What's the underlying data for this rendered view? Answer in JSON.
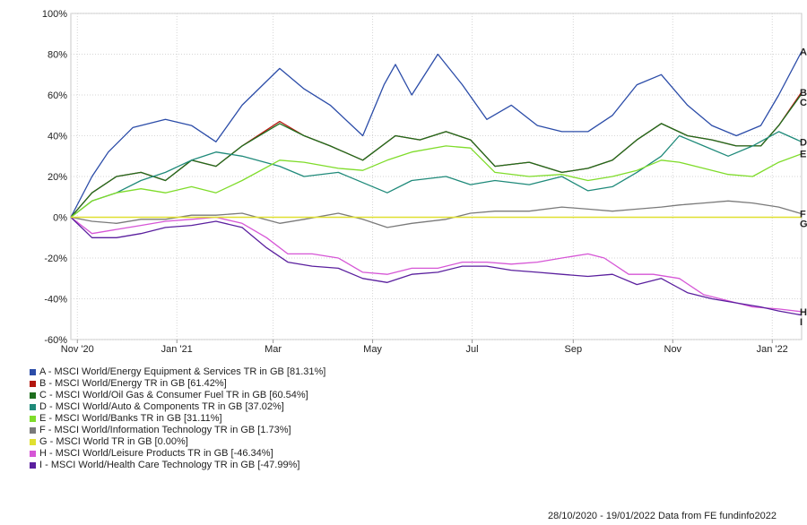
{
  "chart_data": {
    "type": "line",
    "x_ticks": [
      "Nov '20",
      "Jan '21",
      "Mar",
      "May",
      "Jul",
      "Sep",
      "Nov",
      "Jan '22"
    ],
    "y_ticks": [
      "100%",
      "80%",
      "60%",
      "40%",
      "20%",
      "0%",
      "-20%",
      "-40%",
      "-60%"
    ],
    "ylim": [
      -60,
      100
    ],
    "xlim": [
      "2020-10-28",
      "2022-01-19"
    ],
    "grid": true,
    "legend_position": "bottom-left",
    "series": [
      {
        "label": "A",
        "name": "A - MSCI World/Energy Equipment & Services TR in GB [81.31%]",
        "color": "#2b4ca8",
        "points": [
          [
            "2020-10-28",
            0
          ],
          [
            "2020-11-10",
            20
          ],
          [
            "2020-11-20",
            32
          ],
          [
            "2020-12-05",
            44
          ],
          [
            "2020-12-25",
            48
          ],
          [
            "2021-01-10",
            45
          ],
          [
            "2021-01-25",
            37
          ],
          [
            "2021-02-10",
            55
          ],
          [
            "2021-03-05",
            73
          ],
          [
            "2021-03-20",
            63
          ],
          [
            "2021-04-05",
            55
          ],
          [
            "2021-04-25",
            40
          ],
          [
            "2021-05-08",
            65
          ],
          [
            "2021-05-15",
            75
          ],
          [
            "2021-05-25",
            60
          ],
          [
            "2021-06-10",
            80
          ],
          [
            "2021-06-25",
            65
          ],
          [
            "2021-07-10",
            48
          ],
          [
            "2021-07-25",
            55
          ],
          [
            "2021-08-10",
            45
          ],
          [
            "2021-08-25",
            42
          ],
          [
            "2021-09-10",
            42
          ],
          [
            "2021-09-25",
            50
          ],
          [
            "2021-10-10",
            65
          ],
          [
            "2021-10-25",
            70
          ],
          [
            "2021-11-10",
            55
          ],
          [
            "2021-11-25",
            45
          ],
          [
            "2021-12-10",
            40
          ],
          [
            "2021-12-25",
            45
          ],
          [
            "2022-01-05",
            60
          ],
          [
            "2022-01-19",
            81.31
          ]
        ]
      },
      {
        "label": "B",
        "name": "B - MSCI World/Energy TR in GB [61.42%]",
        "color": "#b3170f",
        "points": [
          [
            "2020-10-28",
            0
          ],
          [
            "2020-11-10",
            12
          ],
          [
            "2020-11-25",
            20
          ],
          [
            "2020-12-10",
            22
          ],
          [
            "2020-12-25",
            18
          ],
          [
            "2021-01-10",
            28
          ],
          [
            "2021-01-25",
            25
          ],
          [
            "2021-02-10",
            35
          ],
          [
            "2021-03-05",
            47
          ],
          [
            "2021-03-20",
            40
          ],
          [
            "2021-04-05",
            35
          ],
          [
            "2021-04-25",
            28
          ],
          [
            "2021-05-15",
            40
          ],
          [
            "2021-05-30",
            38
          ],
          [
            "2021-06-15",
            42
          ],
          [
            "2021-06-30",
            38
          ],
          [
            "2021-07-15",
            25
          ],
          [
            "2021-08-05",
            27
          ],
          [
            "2021-08-25",
            22
          ],
          [
            "2021-09-10",
            24
          ],
          [
            "2021-09-25",
            28
          ],
          [
            "2021-10-10",
            38
          ],
          [
            "2021-10-25",
            46
          ],
          [
            "2021-11-10",
            40
          ],
          [
            "2021-11-25",
            38
          ],
          [
            "2021-12-10",
            35
          ],
          [
            "2021-12-25",
            35
          ],
          [
            "2022-01-05",
            45
          ],
          [
            "2022-01-19",
            61.42
          ]
        ]
      },
      {
        "label": "C",
        "name": "C - MSCI World/Oil Gas & Consumer Fuel TR in GB [60.54%]",
        "color": "#1e6e1e",
        "points": [
          [
            "2020-10-28",
            0
          ],
          [
            "2020-11-10",
            12
          ],
          [
            "2020-11-25",
            20
          ],
          [
            "2020-12-10",
            22
          ],
          [
            "2020-12-25",
            18
          ],
          [
            "2021-01-10",
            28
          ],
          [
            "2021-01-25",
            25
          ],
          [
            "2021-02-10",
            35
          ],
          [
            "2021-03-05",
            46
          ],
          [
            "2021-03-20",
            40
          ],
          [
            "2021-04-05",
            35
          ],
          [
            "2021-04-25",
            28
          ],
          [
            "2021-05-15",
            40
          ],
          [
            "2021-05-30",
            38
          ],
          [
            "2021-06-15",
            42
          ],
          [
            "2021-06-30",
            38
          ],
          [
            "2021-07-15",
            25
          ],
          [
            "2021-08-05",
            27
          ],
          [
            "2021-08-25",
            22
          ],
          [
            "2021-09-10",
            24
          ],
          [
            "2021-09-25",
            28
          ],
          [
            "2021-10-10",
            38
          ],
          [
            "2021-10-25",
            46
          ],
          [
            "2021-11-10",
            40
          ],
          [
            "2021-11-25",
            38
          ],
          [
            "2021-12-10",
            35
          ],
          [
            "2021-12-25",
            35
          ],
          [
            "2022-01-05",
            45
          ],
          [
            "2022-01-19",
            60.54
          ]
        ]
      },
      {
        "label": "D",
        "name": "D - MSCI World/Auto & Components TR in GB [37.02%]",
        "color": "#1f8a7a",
        "points": [
          [
            "2020-10-28",
            0
          ],
          [
            "2020-11-10",
            8
          ],
          [
            "2020-11-25",
            12
          ],
          [
            "2020-12-10",
            18
          ],
          [
            "2020-12-25",
            22
          ],
          [
            "2021-01-10",
            28
          ],
          [
            "2021-01-25",
            32
          ],
          [
            "2021-02-10",
            30
          ],
          [
            "2021-03-05",
            25
          ],
          [
            "2021-03-20",
            20
          ],
          [
            "2021-04-10",
            22
          ],
          [
            "2021-04-25",
            17
          ],
          [
            "2021-05-10",
            12
          ],
          [
            "2021-05-25",
            18
          ],
          [
            "2021-06-15",
            20
          ],
          [
            "2021-06-30",
            16
          ],
          [
            "2021-07-15",
            18
          ],
          [
            "2021-08-05",
            16
          ],
          [
            "2021-08-25",
            20
          ],
          [
            "2021-09-10",
            13
          ],
          [
            "2021-09-25",
            15
          ],
          [
            "2021-10-10",
            22
          ],
          [
            "2021-10-25",
            30
          ],
          [
            "2021-11-05",
            40
          ],
          [
            "2021-11-20",
            35
          ],
          [
            "2021-12-05",
            30
          ],
          [
            "2021-12-20",
            35
          ],
          [
            "2022-01-05",
            42
          ],
          [
            "2022-01-19",
            37.02
          ]
        ]
      },
      {
        "label": "E",
        "name": "E - MSCI World/Banks TR in GB [31.11%]",
        "color": "#7fdc2a",
        "points": [
          [
            "2020-10-28",
            0
          ],
          [
            "2020-11-10",
            8
          ],
          [
            "2020-11-25",
            12
          ],
          [
            "2020-12-10",
            14
          ],
          [
            "2020-12-25",
            12
          ],
          [
            "2021-01-10",
            15
          ],
          [
            "2021-01-25",
            12
          ],
          [
            "2021-02-10",
            18
          ],
          [
            "2021-03-05",
            28
          ],
          [
            "2021-03-20",
            27
          ],
          [
            "2021-04-10",
            24
          ],
          [
            "2021-04-25",
            23
          ],
          [
            "2021-05-10",
            28
          ],
          [
            "2021-05-25",
            32
          ],
          [
            "2021-06-15",
            35
          ],
          [
            "2021-06-30",
            34
          ],
          [
            "2021-07-15",
            22
          ],
          [
            "2021-08-05",
            20
          ],
          [
            "2021-08-25",
            21
          ],
          [
            "2021-09-10",
            18
          ],
          [
            "2021-09-25",
            20
          ],
          [
            "2021-10-10",
            23
          ],
          [
            "2021-10-25",
            28
          ],
          [
            "2021-11-05",
            27
          ],
          [
            "2021-11-20",
            24
          ],
          [
            "2021-12-05",
            21
          ],
          [
            "2021-12-20",
            20
          ],
          [
            "2022-01-05",
            27
          ],
          [
            "2022-01-19",
            31.11
          ]
        ]
      },
      {
        "label": "F",
        "name": "F - MSCI World/Information Technology TR in GB [1.73%]",
        "color": "#7a7a7a",
        "points": [
          [
            "2020-10-28",
            0
          ],
          [
            "2020-11-10",
            -2
          ],
          [
            "2020-11-25",
            -3
          ],
          [
            "2020-12-10",
            -1
          ],
          [
            "2020-12-25",
            -1
          ],
          [
            "2021-01-10",
            1
          ],
          [
            "2021-01-25",
            1
          ],
          [
            "2021-02-10",
            2
          ],
          [
            "2021-03-05",
            -3
          ],
          [
            "2021-03-20",
            -1
          ],
          [
            "2021-04-10",
            2
          ],
          [
            "2021-04-25",
            -1
          ],
          [
            "2021-05-10",
            -5
          ],
          [
            "2021-05-25",
            -3
          ],
          [
            "2021-06-15",
            -1
          ],
          [
            "2021-06-30",
            2
          ],
          [
            "2021-07-15",
            3
          ],
          [
            "2021-08-05",
            3
          ],
          [
            "2021-08-25",
            5
          ],
          [
            "2021-09-10",
            4
          ],
          [
            "2021-09-25",
            3
          ],
          [
            "2021-10-10",
            4
          ],
          [
            "2021-10-25",
            5
          ],
          [
            "2021-11-05",
            6
          ],
          [
            "2021-11-20",
            7
          ],
          [
            "2021-12-05",
            8
          ],
          [
            "2021-12-20",
            7
          ],
          [
            "2022-01-05",
            5
          ],
          [
            "2022-01-19",
            1.73
          ]
        ]
      },
      {
        "label": "G",
        "name": "G - MSCI World TR in GB [0.00%]",
        "color": "#e0e030",
        "points": [
          [
            "2020-10-28",
            0
          ],
          [
            "2022-01-19",
            0
          ]
        ]
      },
      {
        "label": "H",
        "name": "H - MSCI World/Leisure Products TR in GB [-46.34%]",
        "color": "#d656d6",
        "points": [
          [
            "2020-10-28",
            0
          ],
          [
            "2020-11-10",
            -8
          ],
          [
            "2020-11-25",
            -6
          ],
          [
            "2020-12-10",
            -4
          ],
          [
            "2020-12-25",
            -2
          ],
          [
            "2021-01-10",
            -1
          ],
          [
            "2021-01-25",
            0
          ],
          [
            "2021-02-10",
            -3
          ],
          [
            "2021-02-25",
            -10
          ],
          [
            "2021-03-10",
            -18
          ],
          [
            "2021-03-25",
            -18
          ],
          [
            "2021-04-10",
            -20
          ],
          [
            "2021-04-25",
            -27
          ],
          [
            "2021-05-10",
            -28
          ],
          [
            "2021-05-25",
            -25
          ],
          [
            "2021-06-10",
            -25
          ],
          [
            "2021-06-25",
            -22
          ],
          [
            "2021-07-10",
            -22
          ],
          [
            "2021-07-25",
            -23
          ],
          [
            "2021-08-10",
            -22
          ],
          [
            "2021-08-25",
            -20
          ],
          [
            "2021-09-10",
            -18
          ],
          [
            "2021-09-20",
            -20
          ],
          [
            "2021-10-05",
            -28
          ],
          [
            "2021-10-20",
            -28
          ],
          [
            "2021-11-05",
            -30
          ],
          [
            "2021-11-20",
            -38
          ],
          [
            "2021-12-05",
            -41
          ],
          [
            "2021-12-20",
            -44
          ],
          [
            "2022-01-05",
            -45
          ],
          [
            "2022-01-19",
            -46.34
          ]
        ]
      },
      {
        "label": "I",
        "name": "I - MSCI World/Health Care Technology TR in GB [-47.99%]",
        "color": "#5a1f9e",
        "points": [
          [
            "2020-10-28",
            0
          ],
          [
            "2020-11-10",
            -10
          ],
          [
            "2020-11-25",
            -10
          ],
          [
            "2020-12-10",
            -8
          ],
          [
            "2020-12-25",
            -5
          ],
          [
            "2021-01-10",
            -4
          ],
          [
            "2021-01-25",
            -2
          ],
          [
            "2021-02-10",
            -5
          ],
          [
            "2021-02-25",
            -15
          ],
          [
            "2021-03-10",
            -22
          ],
          [
            "2021-03-25",
            -24
          ],
          [
            "2021-04-10",
            -25
          ],
          [
            "2021-04-25",
            -30
          ],
          [
            "2021-05-10",
            -32
          ],
          [
            "2021-05-25",
            -28
          ],
          [
            "2021-06-10",
            -27
          ],
          [
            "2021-06-25",
            -24
          ],
          [
            "2021-07-10",
            -24
          ],
          [
            "2021-07-25",
            -26
          ],
          [
            "2021-08-10",
            -27
          ],
          [
            "2021-08-25",
            -28
          ],
          [
            "2021-09-10",
            -29
          ],
          [
            "2021-09-25",
            -28
          ],
          [
            "2021-10-10",
            -33
          ],
          [
            "2021-10-25",
            -30
          ],
          [
            "2021-11-10",
            -37
          ],
          [
            "2021-11-25",
            -40
          ],
          [
            "2021-12-10",
            -42
          ],
          [
            "2021-12-25",
            -44
          ],
          [
            "2022-01-05",
            -46
          ],
          [
            "2022-01-19",
            -47.99
          ]
        ]
      }
    ]
  },
  "footer": "28/10/2020 - 19/01/2022 Data from FE fundinfo2022"
}
